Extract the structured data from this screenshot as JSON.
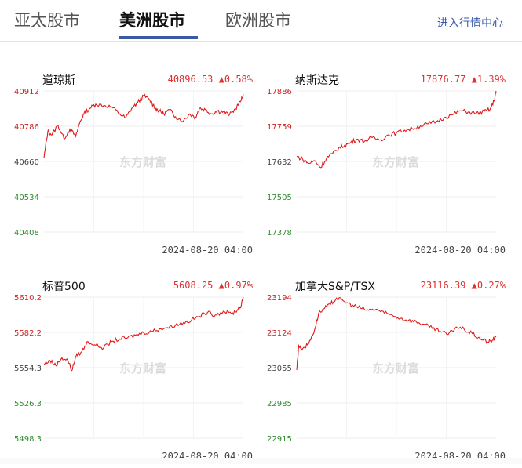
{
  "tabs": [
    {
      "label": "亚太股市",
      "active": false
    },
    {
      "label": "美洲股市",
      "active": true
    },
    {
      "label": "欧洲股市",
      "active": false
    }
  ],
  "market_link": "进入行情中心",
  "watermark": "东方财富",
  "colors": {
    "line": "#e01818",
    "up_tick": "#d02020",
    "down_tick": "#2e8b2e",
    "accent": "#3b5aa5"
  },
  "chart_data": [
    {
      "type": "line",
      "name": "道琼斯",
      "last": "40896.53",
      "change": "▲0.58%",
      "time": "2024-08-20 04:00",
      "ylim": [
        40408,
        40912
      ],
      "yticks": [
        "40912",
        "40786",
        "40660",
        "40534",
        "40408"
      ],
      "ytick_colors": [
        "up",
        "up",
        "neutral",
        "down",
        "down"
      ],
      "grid": true,
      "x": [
        0,
        0.02,
        0.04,
        0.07,
        0.1,
        0.13,
        0.16,
        0.18,
        0.2,
        0.23,
        0.26,
        0.3,
        0.34,
        0.38,
        0.41,
        0.44,
        0.47,
        0.5,
        0.53,
        0.56,
        0.58,
        0.6,
        0.63,
        0.66,
        0.7,
        0.73,
        0.76,
        0.78,
        0.81,
        0.84,
        0.87,
        0.9,
        0.93,
        0.96,
        0.99,
        1.0
      ],
      "values": [
        40672,
        40770,
        40755,
        40790,
        40742,
        40775,
        40750,
        40800,
        40830,
        40850,
        40865,
        40860,
        40855,
        40830,
        40815,
        40850,
        40870,
        40895,
        40880,
        40850,
        40840,
        40830,
        40845,
        40820,
        40805,
        40830,
        40818,
        40850,
        40845,
        40830,
        40840,
        40838,
        40826,
        40848,
        40880,
        40900
      ]
    },
    {
      "type": "line",
      "name": "纳斯达克",
      "last": "17876.77",
      "change": "▲1.39%",
      "time": "2024-08-20 04:00",
      "ylim": [
        17378,
        17886
      ],
      "yticks": [
        "17886",
        "17759",
        "17632",
        "17505",
        "17378"
      ],
      "ytick_colors": [
        "up",
        "up",
        "neutral",
        "down",
        "down"
      ],
      "grid": true,
      "x": [
        0,
        0.03,
        0.06,
        0.09,
        0.12,
        0.15,
        0.18,
        0.21,
        0.24,
        0.27,
        0.3,
        0.34,
        0.38,
        0.42,
        0.46,
        0.5,
        0.54,
        0.58,
        0.62,
        0.66,
        0.7,
        0.74,
        0.78,
        0.82,
        0.86,
        0.9,
        0.94,
        0.97,
        0.99,
        1.0
      ],
      "values": [
        17650,
        17640,
        17625,
        17635,
        17610,
        17645,
        17660,
        17680,
        17690,
        17700,
        17712,
        17705,
        17718,
        17710,
        17728,
        17735,
        17745,
        17750,
        17760,
        17768,
        17775,
        17790,
        17800,
        17815,
        17810,
        17805,
        17812,
        17820,
        17850,
        17886
      ]
    },
    {
      "type": "line",
      "name": "标普500",
      "last": "5608.25",
      "change": "▲0.97%",
      "time": "2024-08-20 04:00",
      "ylim": [
        5498.3,
        5610.2
      ],
      "yticks": [
        "5610.2",
        "5582.2",
        "5554.3",
        "5526.3",
        "5498.3"
      ],
      "ytick_colors": [
        "up",
        "up",
        "neutral",
        "down",
        "down"
      ],
      "grid": true,
      "x": [
        0,
        0.03,
        0.06,
        0.09,
        0.12,
        0.14,
        0.16,
        0.19,
        0.22,
        0.26,
        0.3,
        0.34,
        0.38,
        0.42,
        0.46,
        0.5,
        0.54,
        0.58,
        0.62,
        0.66,
        0.7,
        0.74,
        0.78,
        0.82,
        0.86,
        0.9,
        0.94,
        0.97,
        0.99,
        1.0
      ],
      "values": [
        5557,
        5560,
        5556,
        5562,
        5560,
        5552,
        5563,
        5567,
        5575,
        5572,
        5570,
        5575,
        5577,
        5578,
        5580,
        5582,
        5583,
        5585,
        5586,
        5588,
        5590,
        5592,
        5595,
        5598,
        5596,
        5599,
        5597,
        5600,
        5604,
        5610
      ]
    },
    {
      "type": "line",
      "name": "加拿大S&P/TSX",
      "last": "23116.39",
      "change": "▲0.27%",
      "time": "2024-08-20 04:00",
      "ylim": [
        22915,
        23194
      ],
      "yticks": [
        "23194",
        "23124",
        "23055",
        "22985",
        "22915"
      ],
      "ytick_colors": [
        "up",
        "up",
        "neutral",
        "down",
        "down"
      ],
      "grid": true,
      "x": [
        0,
        0.01,
        0.03,
        0.06,
        0.09,
        0.11,
        0.14,
        0.17,
        0.2,
        0.24,
        0.28,
        0.32,
        0.36,
        0.4,
        0.44,
        0.48,
        0.52,
        0.56,
        0.6,
        0.64,
        0.68,
        0.72,
        0.76,
        0.8,
        0.84,
        0.88,
        0.92,
        0.96,
        0.98,
        1.0
      ],
      "values": [
        23050,
        23098,
        23092,
        23102,
        23130,
        23162,
        23172,
        23180,
        23192,
        23185,
        23178,
        23172,
        23168,
        23170,
        23162,
        23158,
        23152,
        23148,
        23145,
        23140,
        23132,
        23126,
        23120,
        23135,
        23130,
        23122,
        23112,
        23105,
        23108,
        23116
      ]
    }
  ]
}
